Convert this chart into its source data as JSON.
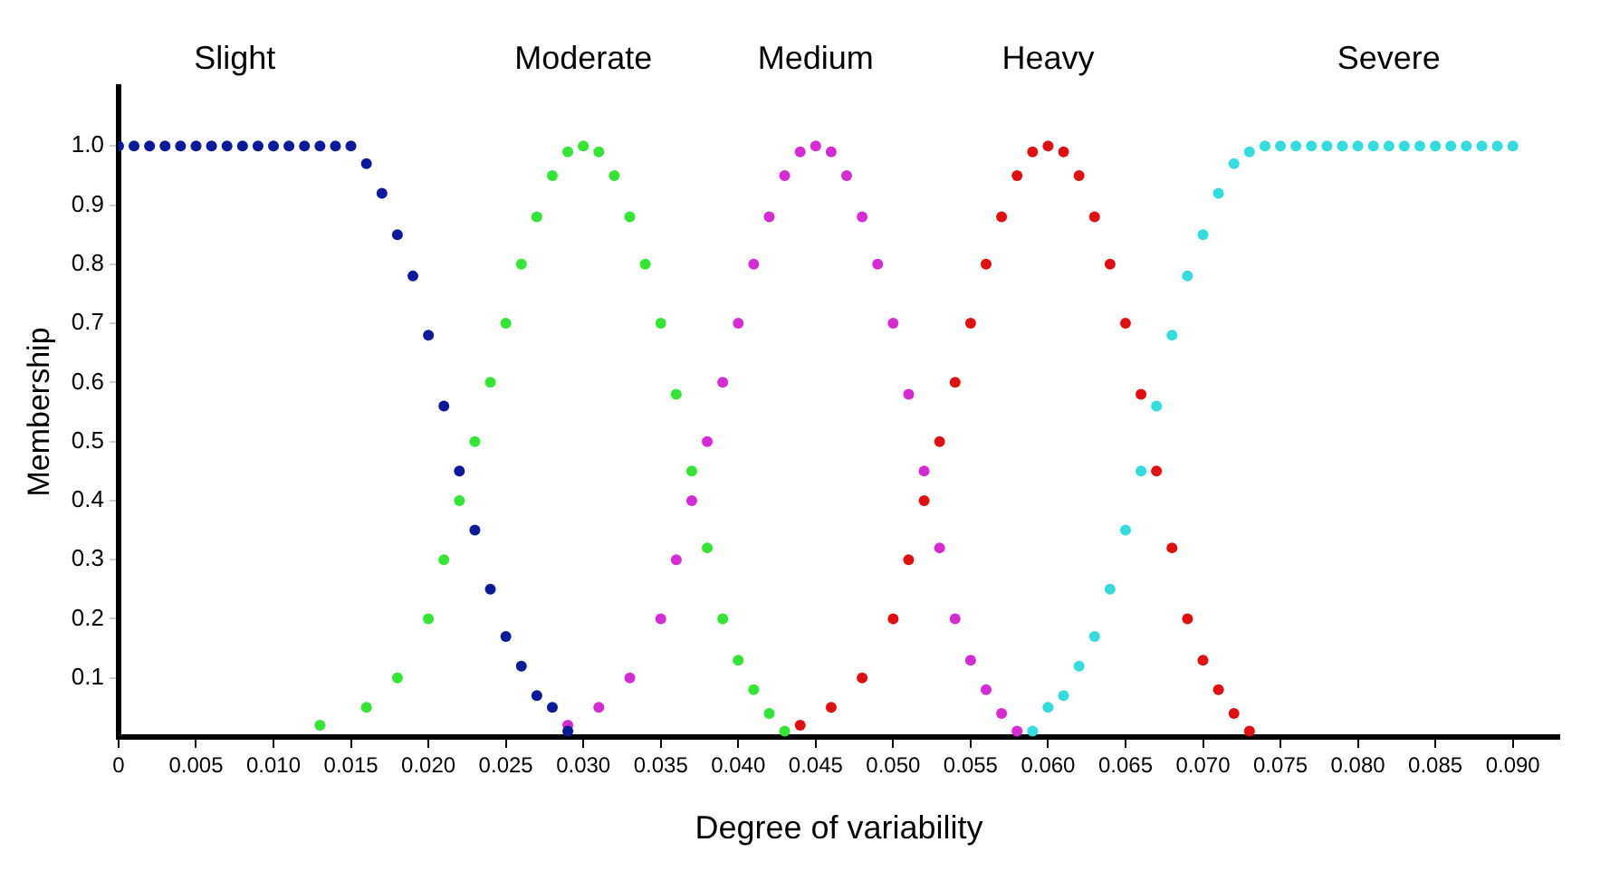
{
  "chart_data": {
    "type": "scatter",
    "xlabel": "Degree of variability",
    "ylabel": "Membership",
    "xlim": [
      0,
      0.093
    ],
    "ylim": [
      0,
      1.1
    ],
    "xticks": [
      0,
      0.005,
      {
        "value": 0.01,
        "label": "0.010"
      },
      0.015,
      {
        "value": 0.02,
        "label": "0.020"
      },
      0.025,
      {
        "value": 0.03,
        "label": "0.030"
      },
      0.035,
      {
        "value": 0.04,
        "label": "0.040"
      },
      0.045,
      {
        "value": 0.05,
        "label": "0.050"
      },
      0.055,
      {
        "value": 0.06,
        "label": "0.060"
      },
      0.065,
      {
        "value": 0.07,
        "label": "0.070"
      },
      0.075,
      {
        "value": 0.08,
        "label": "0.080"
      },
      0.085,
      {
        "value": 0.09,
        "label": "0.090"
      }
    ],
    "yticks": [
      0.1,
      0.2,
      0.3,
      0.4,
      0.5,
      0.6,
      0.7,
      0.8,
      0.9,
      {
        "value": 1,
        "label": "1.0"
      }
    ],
    "grid": false,
    "legend": false,
    "marker": "circle",
    "series": [
      {
        "name": "Slight",
        "color": "#0a1a9a",
        "x": [
          0,
          0.001,
          0.002,
          0.003,
          0.004,
          0.005,
          0.006,
          0.007,
          0.008,
          0.009,
          0.01,
          0.011,
          0.012,
          0.013,
          0.014,
          0.015,
          0.016,
          0.017,
          0.018,
          0.019,
          0.02,
          0.021,
          0.022,
          0.023,
          0.024,
          0.025,
          0.026,
          0.027,
          0.028,
          0.029
        ],
        "values": [
          1,
          1,
          1,
          1,
          1,
          1,
          1,
          1,
          1,
          1,
          1,
          1,
          1,
          1,
          1,
          1,
          0.97,
          0.92,
          0.85,
          0.78,
          0.68,
          0.56,
          0.45,
          0.35,
          0.25,
          0.17,
          0.12,
          0.07,
          0.05,
          0.01
        ]
      },
      {
        "name": "Moderate",
        "color": "#33e633",
        "x": [
          0.013,
          0.016,
          0.018,
          0.02,
          0.021,
          0.022,
          0.023,
          0.024,
          0.025,
          0.026,
          0.027,
          0.028,
          0.029,
          0.03,
          0.031,
          0.032,
          0.033,
          0.034,
          0.035,
          0.036,
          0.037,
          0.038,
          0.039,
          0.04,
          0.041,
          0.042,
          0.043
        ],
        "values": [
          0.02,
          0.05,
          0.1,
          0.2,
          0.3,
          0.4,
          0.5,
          0.6,
          0.7,
          0.8,
          0.88,
          0.95,
          0.99,
          1,
          0.99,
          0.95,
          0.88,
          0.8,
          0.7,
          0.58,
          0.45,
          0.32,
          0.2,
          0.13,
          0.08,
          0.04,
          0.01
        ]
      },
      {
        "name": "Medium",
        "color": "#d42bd4",
        "x": [
          0.029,
          0.031,
          0.033,
          0.035,
          0.036,
          0.037,
          0.038,
          0.039,
          0.04,
          0.041,
          0.042,
          0.043,
          0.044,
          0.045,
          0.046,
          0.047,
          0.048,
          0.049,
          0.05,
          0.051,
          0.052,
          0.053,
          0.054,
          0.055,
          0.056,
          0.057,
          0.058
        ],
        "values": [
          0.02,
          0.05,
          0.1,
          0.2,
          0.3,
          0.4,
          0.5,
          0.6,
          0.7,
          0.8,
          0.88,
          0.95,
          0.99,
          1,
          0.99,
          0.95,
          0.88,
          0.8,
          0.7,
          0.58,
          0.45,
          0.32,
          0.2,
          0.13,
          0.08,
          0.04,
          0.01
        ]
      },
      {
        "name": "Heavy",
        "color": "#e01010",
        "x": [
          0.044,
          0.046,
          0.048,
          0.05,
          0.051,
          0.052,
          0.053,
          0.054,
          0.055,
          0.056,
          0.057,
          0.058,
          0.059,
          0.06,
          0.061,
          0.062,
          0.063,
          0.064,
          0.065,
          0.066,
          0.067,
          0.068,
          0.069,
          0.07,
          0.071,
          0.072,
          0.073
        ],
        "values": [
          0.02,
          0.05,
          0.1,
          0.2,
          0.3,
          0.4,
          0.5,
          0.6,
          0.7,
          0.8,
          0.88,
          0.95,
          0.99,
          1,
          0.99,
          0.95,
          0.88,
          0.8,
          0.7,
          0.58,
          0.45,
          0.32,
          0.2,
          0.13,
          0.08,
          0.04,
          0.01
        ]
      },
      {
        "name": "Severe",
        "color": "#33dddd",
        "x": [
          0.059,
          0.06,
          0.061,
          0.062,
          0.063,
          0.064,
          0.065,
          0.066,
          0.067,
          0.068,
          0.069,
          0.07,
          0.071,
          0.072,
          0.073,
          0.074,
          0.075,
          0.076,
          0.077,
          0.078,
          0.079,
          0.08,
          0.081,
          0.082,
          0.083,
          0.084,
          0.085,
          0.086,
          0.087,
          0.088,
          0.089,
          0.09
        ],
        "values": [
          0.01,
          0.05,
          0.07,
          0.12,
          0.17,
          0.25,
          0.35,
          0.45,
          0.56,
          0.68,
          0.78,
          0.85,
          0.92,
          0.97,
          0.99,
          1,
          1,
          1,
          1,
          1,
          1,
          1,
          1,
          1,
          1,
          1,
          1,
          1,
          1,
          1,
          1,
          1
        ]
      }
    ]
  }
}
